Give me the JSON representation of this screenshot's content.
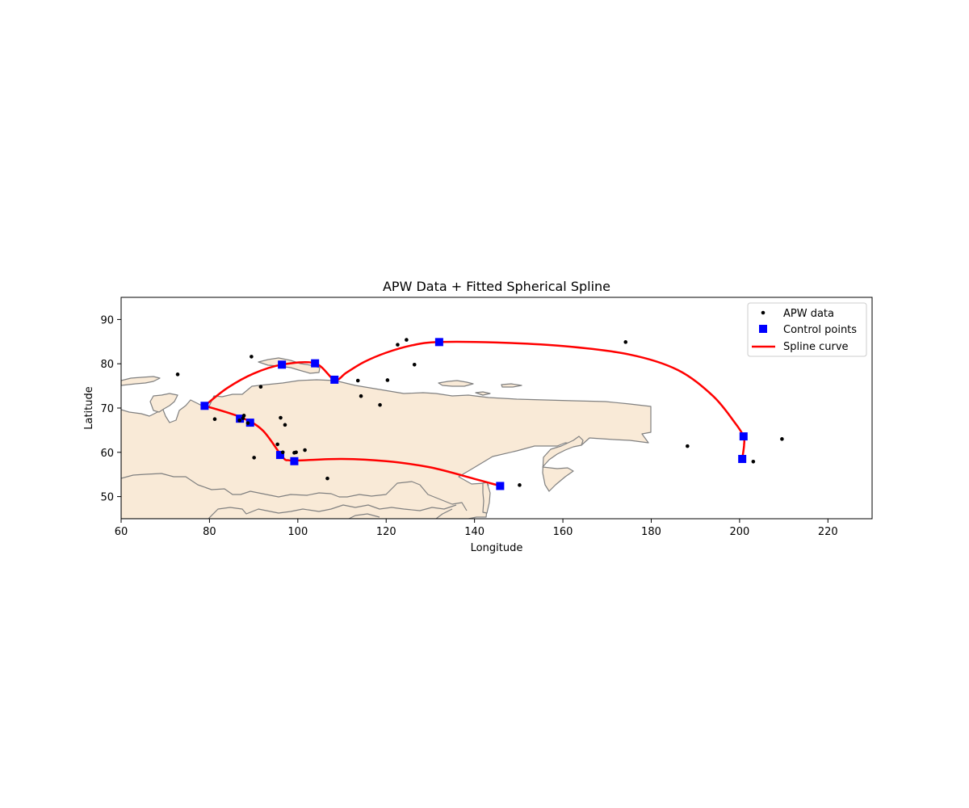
{
  "chart_data": {
    "type": "scatter",
    "title": "APW Data + Fitted Spherical Spline",
    "xlabel": "Longitude",
    "ylabel": "Latitude",
    "xlim": [
      60,
      230
    ],
    "ylim": [
      45,
      95
    ],
    "xticks": [
      60,
      80,
      100,
      120,
      140,
      160,
      180,
      200,
      220
    ],
    "yticks": [
      50,
      60,
      70,
      80,
      90
    ],
    "grid": false,
    "legend_position": "top-right",
    "background_map": "coastlines with land fill",
    "colors": {
      "land": "#f9ead7",
      "coast": "#808080",
      "data": "#000000",
      "control": "#0000ff",
      "spline": "#ff0000"
    },
    "series": [
      {
        "name": "APW data",
        "marker": "dot",
        "points": [
          [
            72.8,
            77.6
          ],
          [
            81.2,
            67.5
          ],
          [
            86.8,
            67.2
          ],
          [
            87.8,
            68.3
          ],
          [
            87.6,
            67.7
          ],
          [
            88.7,
            66.6
          ],
          [
            89.5,
            81.6
          ],
          [
            90.1,
            58.8
          ],
          [
            91.6,
            74.8
          ],
          [
            95.4,
            61.8
          ],
          [
            96.1,
            67.8
          ],
          [
            97.1,
            66.2
          ],
          [
            96.6,
            60.0
          ],
          [
            99.2,
            59.9
          ],
          [
            99.6,
            60.0
          ],
          [
            101.6,
            60.5
          ],
          [
            106.7,
            54.1
          ],
          [
            113.6,
            76.2
          ],
          [
            114.3,
            72.7
          ],
          [
            118.6,
            70.7
          ],
          [
            120.3,
            76.3
          ],
          [
            122.6,
            84.3
          ],
          [
            124.6,
            85.4
          ],
          [
            126.4,
            79.8
          ],
          [
            150.2,
            52.6
          ],
          [
            174.2,
            84.9
          ],
          [
            188.2,
            61.4
          ],
          [
            203.1,
            57.9
          ],
          [
            209.6,
            63.0
          ]
        ]
      },
      {
        "name": "Control points",
        "marker": "square",
        "points": [
          [
            78.9,
            70.5
          ],
          [
            86.9,
            67.6
          ],
          [
            89.2,
            66.7
          ],
          [
            96.0,
            59.4
          ],
          [
            99.2,
            58.0
          ],
          [
            96.4,
            79.8
          ],
          [
            103.9,
            80.1
          ],
          [
            108.3,
            76.4
          ],
          [
            132.0,
            84.9
          ],
          [
            200.9,
            63.6
          ],
          [
            200.6,
            58.5
          ],
          [
            145.8,
            52.4
          ]
        ]
      },
      {
        "name": "Spline curve",
        "marker": "line",
        "segments": [
          [
            [
              78.9,
              70.5
            ],
            [
              86.9,
              68.0
            ],
            [
              92.0,
              65.0
            ],
            [
              96.5,
              59.0
            ],
            [
              98.0,
              58.2
            ],
            [
              101.0,
              58.2
            ],
            [
              110.0,
              58.5
            ],
            [
              120.0,
              58.0
            ],
            [
              130.0,
              56.6
            ],
            [
              140.0,
              54.0
            ],
            [
              145.8,
              52.4
            ]
          ],
          [
            [
              78.9,
              70.5
            ],
            [
              84.0,
              74.5
            ],
            [
              90.0,
              77.8
            ],
            [
              96.4,
              79.8
            ],
            [
              103.9,
              80.1
            ],
            [
              108.3,
              76.4
            ],
            [
              111.0,
              78.0
            ],
            [
              115.0,
              80.4
            ],
            [
              120.0,
              82.5
            ],
            [
              126.0,
              84.2
            ],
            [
              132.0,
              84.9
            ],
            [
              145.0,
              84.8
            ],
            [
              160.0,
              84.0
            ],
            [
              175.0,
              82.1
            ],
            [
              186.0,
              78.6
            ],
            [
              194.0,
              72.7
            ],
            [
              199.0,
              66.6
            ],
            [
              200.9,
              63.6
            ],
            [
              201.0,
              61.5
            ],
            [
              200.6,
              58.5
            ]
          ]
        ]
      }
    ]
  }
}
